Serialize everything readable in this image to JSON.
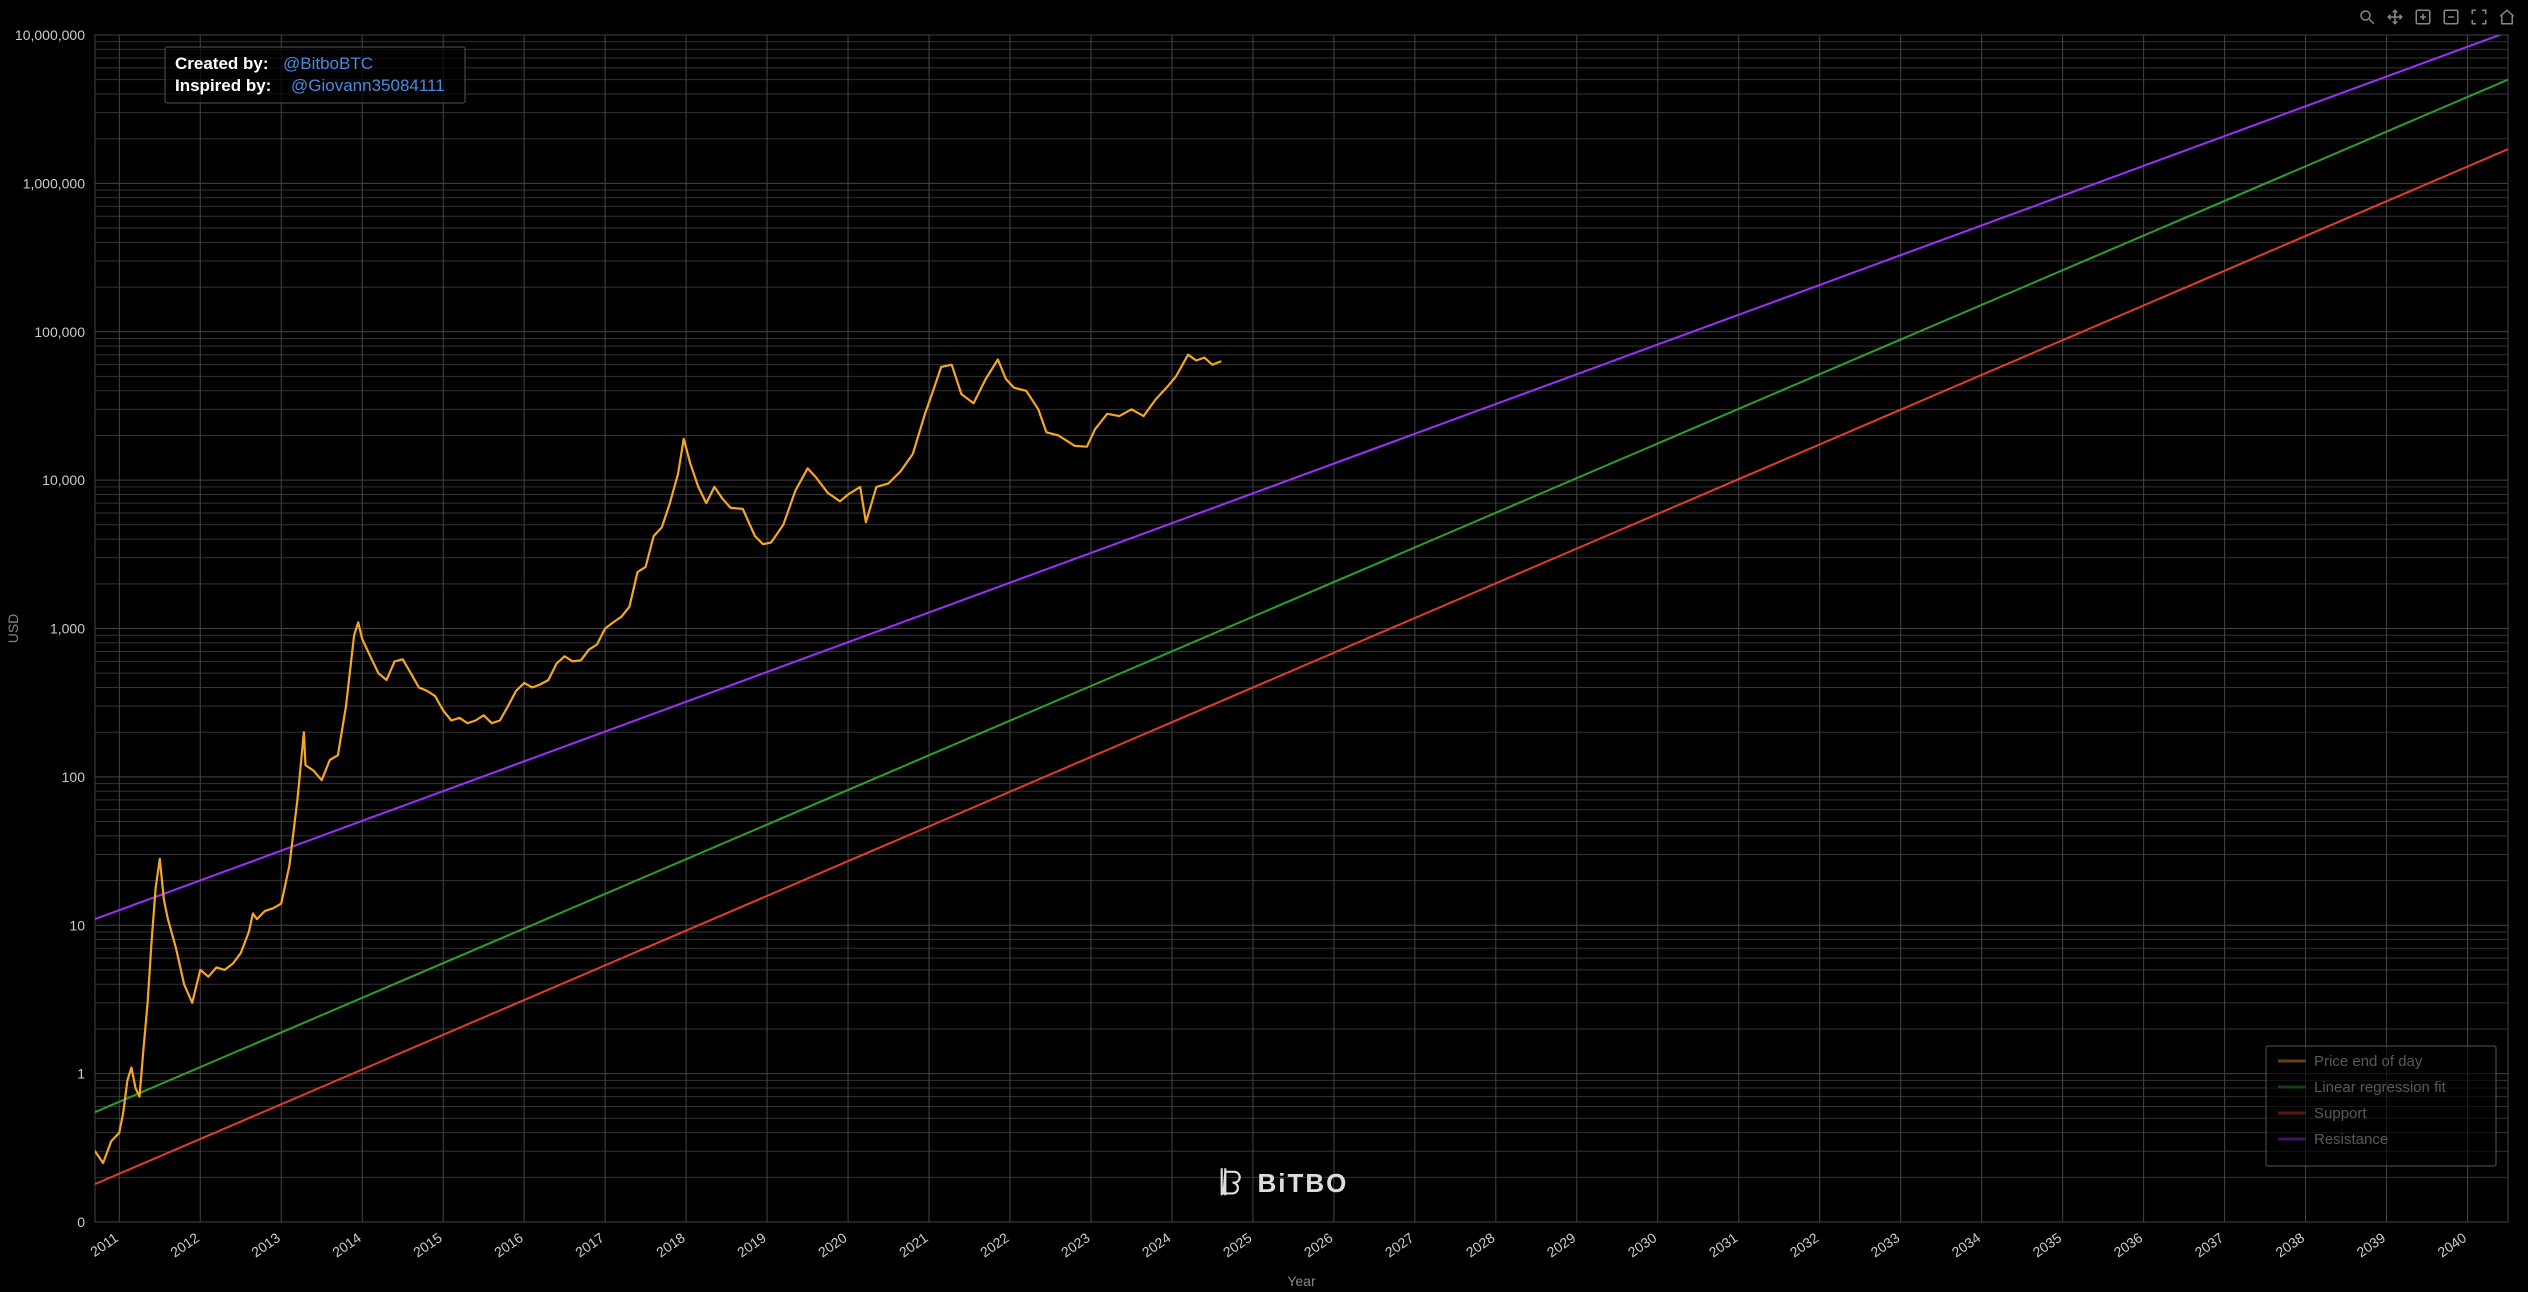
{
  "chart": {
    "type": "line-log",
    "background_color": "#000000",
    "grid_color": "#333333",
    "grid_color_major": "#444444",
    "border_color": "#555555",
    "xlabel": "Year",
    "ylabel": "USD",
    "label_color": "#888888",
    "label_fontsize": 14,
    "tick_color": "#cccccc",
    "tick_fontsize": 14,
    "yscale": "log",
    "ylim": [
      0.1,
      10000000
    ],
    "yticks": [
      0,
      1,
      10,
      100,
      1000,
      10000,
      100000,
      1000000,
      10000000
    ],
    "ytick_labels": [
      "0",
      "1",
      "10",
      "100",
      "1,000",
      "10,000",
      "100,000",
      "1,000,000",
      "10,000,000"
    ],
    "xlim": [
      2010.7,
      2040.5
    ],
    "xticks": [
      2011,
      2012,
      2013,
      2014,
      2015,
      2016,
      2017,
      2018,
      2019,
      2020,
      2021,
      2022,
      2023,
      2024,
      2025,
      2026,
      2027,
      2028,
      2029,
      2030,
      2031,
      2032,
      2033,
      2034,
      2035,
      2036,
      2037,
      2038,
      2039,
      2040
    ],
    "xtick_rotation": -35,
    "series": {
      "price": {
        "label": "Price end of day",
        "color": "#f5a623",
        "line_width": 2.2,
        "data": [
          [
            2010.7,
            0.3
          ],
          [
            2010.8,
            0.25
          ],
          [
            2010.9,
            0.35
          ],
          [
            2011.0,
            0.4
          ],
          [
            2011.05,
            0.55
          ],
          [
            2011.1,
            0.9
          ],
          [
            2011.15,
            1.1
          ],
          [
            2011.2,
            0.8
          ],
          [
            2011.25,
            0.7
          ],
          [
            2011.3,
            1.5
          ],
          [
            2011.35,
            3.0
          ],
          [
            2011.4,
            8.0
          ],
          [
            2011.45,
            18.0
          ],
          [
            2011.5,
            28.0
          ],
          [
            2011.55,
            15.0
          ],
          [
            2011.6,
            11.0
          ],
          [
            2011.7,
            7.0
          ],
          [
            2011.8,
            4.0
          ],
          [
            2011.9,
            3.0
          ],
          [
            2012.0,
            5.0
          ],
          [
            2012.1,
            4.5
          ],
          [
            2012.2,
            5.2
          ],
          [
            2012.3,
            5.0
          ],
          [
            2012.4,
            5.5
          ],
          [
            2012.5,
            6.5
          ],
          [
            2012.6,
            9.0
          ],
          [
            2012.65,
            12.0
          ],
          [
            2012.7,
            11.0
          ],
          [
            2012.8,
            12.5
          ],
          [
            2012.9,
            13.0
          ],
          [
            2013.0,
            14.0
          ],
          [
            2013.1,
            25.0
          ],
          [
            2013.2,
            70.0
          ],
          [
            2013.28,
            200.0
          ],
          [
            2013.3,
            120.0
          ],
          [
            2013.4,
            110.0
          ],
          [
            2013.5,
            95.0
          ],
          [
            2013.6,
            130.0
          ],
          [
            2013.7,
            140.0
          ],
          [
            2013.8,
            300.0
          ],
          [
            2013.9,
            900.0
          ],
          [
            2013.95,
            1100.0
          ],
          [
            2014.0,
            850.0
          ],
          [
            2014.1,
            650.0
          ],
          [
            2014.2,
            500.0
          ],
          [
            2014.3,
            450.0
          ],
          [
            2014.4,
            600.0
          ],
          [
            2014.5,
            620.0
          ],
          [
            2014.6,
            500.0
          ],
          [
            2014.7,
            400.0
          ],
          [
            2014.8,
            380.0
          ],
          [
            2014.9,
            350.0
          ],
          [
            2015.0,
            280.0
          ],
          [
            2015.1,
            240.0
          ],
          [
            2015.2,
            250.0
          ],
          [
            2015.3,
            230.0
          ],
          [
            2015.4,
            240.0
          ],
          [
            2015.5,
            260.0
          ],
          [
            2015.6,
            230.0
          ],
          [
            2015.7,
            240.0
          ],
          [
            2015.8,
            300.0
          ],
          [
            2015.9,
            380.0
          ],
          [
            2016.0,
            430.0
          ],
          [
            2016.1,
            400.0
          ],
          [
            2016.2,
            420.0
          ],
          [
            2016.3,
            450.0
          ],
          [
            2016.4,
            580.0
          ],
          [
            2016.5,
            650.0
          ],
          [
            2016.6,
            600.0
          ],
          [
            2016.7,
            610.0
          ],
          [
            2016.8,
            720.0
          ],
          [
            2016.9,
            780.0
          ],
          [
            2017.0,
            1000.0
          ],
          [
            2017.1,
            1100.0
          ],
          [
            2017.2,
            1200.0
          ],
          [
            2017.3,
            1400.0
          ],
          [
            2017.4,
            2400.0
          ],
          [
            2017.5,
            2600.0
          ],
          [
            2017.6,
            4200.0
          ],
          [
            2017.7,
            4800.0
          ],
          [
            2017.8,
            7000.0
          ],
          [
            2017.9,
            11000.0
          ],
          [
            2017.97,
            19000.0
          ],
          [
            2018.05,
            13000.0
          ],
          [
            2018.15,
            9000.0
          ],
          [
            2018.25,
            7000.0
          ],
          [
            2018.35,
            9000.0
          ],
          [
            2018.45,
            7500.0
          ],
          [
            2018.55,
            6500.0
          ],
          [
            2018.7,
            6400.0
          ],
          [
            2018.85,
            4200.0
          ],
          [
            2018.95,
            3700.0
          ],
          [
            2019.05,
            3800.0
          ],
          [
            2019.2,
            5000.0
          ],
          [
            2019.35,
            8500.0
          ],
          [
            2019.5,
            12000.0
          ],
          [
            2019.6,
            10500.0
          ],
          [
            2019.75,
            8200.0
          ],
          [
            2019.9,
            7200.0
          ],
          [
            2020.0,
            8000.0
          ],
          [
            2020.15,
            9000.0
          ],
          [
            2020.22,
            5200.0
          ],
          [
            2020.35,
            9000.0
          ],
          [
            2020.5,
            9500.0
          ],
          [
            2020.65,
            11500.0
          ],
          [
            2020.8,
            15000.0
          ],
          [
            2020.95,
            28000.0
          ],
          [
            2021.05,
            40000.0
          ],
          [
            2021.15,
            58000.0
          ],
          [
            2021.28,
            60000.0
          ],
          [
            2021.4,
            38000.0
          ],
          [
            2021.55,
            33000.0
          ],
          [
            2021.7,
            48000.0
          ],
          [
            2021.85,
            65000.0
          ],
          [
            2021.95,
            48000.0
          ],
          [
            2022.05,
            42000.0
          ],
          [
            2022.2,
            40000.0
          ],
          [
            2022.35,
            30000.0
          ],
          [
            2022.45,
            21000.0
          ],
          [
            2022.6,
            20000.0
          ],
          [
            2022.8,
            17000.0
          ],
          [
            2022.95,
            16800.0
          ],
          [
            2023.05,
            22000.0
          ],
          [
            2023.2,
            28000.0
          ],
          [
            2023.35,
            27000.0
          ],
          [
            2023.5,
            30000.0
          ],
          [
            2023.65,
            27000.0
          ],
          [
            2023.8,
            35000.0
          ],
          [
            2023.95,
            43000.0
          ],
          [
            2024.05,
            50000.0
          ],
          [
            2024.2,
            70000.0
          ],
          [
            2024.3,
            64000.0
          ],
          [
            2024.4,
            67000.0
          ],
          [
            2024.5,
            60000.0
          ],
          [
            2024.6,
            63000.0
          ]
        ]
      },
      "fit": {
        "label": "Linear regression fit",
        "color": "#2ca02c",
        "line_width": 2,
        "p1": [
          2010.7,
          0.55
        ],
        "p2": [
          2040.5,
          5000000
        ]
      },
      "support": {
        "label": "Support",
        "color": "#e03c31",
        "line_width": 2,
        "p1": [
          2010.7,
          0.18
        ],
        "p2": [
          2040.5,
          1700000
        ]
      },
      "resistance": {
        "label": "Resistance",
        "color": "#9b30ff",
        "line_width": 2,
        "p1": [
          2010.7,
          11
        ],
        "p2": [
          2040.5,
          10500000
        ]
      }
    },
    "legend": {
      "position": "bottom-right",
      "background": "rgba(0,0,0,0.6)",
      "border_color": "#555555",
      "text_color": "#dddddd",
      "fontsize": 15,
      "items": [
        {
          "key": "price",
          "label": "Price end of day",
          "color": "#f5a623"
        },
        {
          "key": "fit",
          "label": "Linear regression fit",
          "color": "#2ca02c"
        },
        {
          "key": "support",
          "label": "Support",
          "color": "#e03c31"
        },
        {
          "key": "resistance",
          "label": "Resistance",
          "color": "#9b30ff"
        }
      ]
    },
    "attribution": {
      "created_by_label": "Created by:",
      "created_by_handle": "@BitboBTC",
      "inspired_by_label": "Inspired by:",
      "inspired_by_handle": "@Giovann35084111",
      "link_color": "#4a8be0",
      "label_color": "#ffffff",
      "fontsize": 17
    },
    "watermark": {
      "text": "BiTBO",
      "color": "#dddddd",
      "fontsize": 26
    },
    "toolbar": {
      "icons": [
        "zoom-icon",
        "pan-icon",
        "zoom-in-icon",
        "zoom-out-icon",
        "fullscreen-icon",
        "home-icon"
      ]
    }
  }
}
